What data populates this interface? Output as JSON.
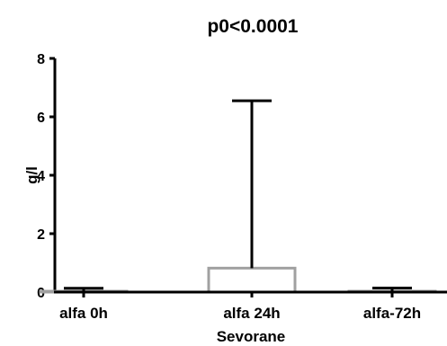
{
  "chart_data": {
    "type": "bar",
    "title": "p0<0.0001",
    "xlabel": "Sevorane",
    "ylabel": "g/l",
    "categories": [
      "alfa 0h",
      "alfa 24h",
      "alfa-72h"
    ],
    "values": [
      0.03,
      0.82,
      0.03
    ],
    "error_upper": [
      0.13,
      6.55,
      0.14
    ],
    "ylim": [
      0,
      8
    ],
    "yticks": [
      "0",
      "2",
      "4",
      "6",
      "8"
    ],
    "grid": false,
    "legend": "none",
    "bar_color": "#a0a0a0",
    "error_color": "#000000"
  }
}
